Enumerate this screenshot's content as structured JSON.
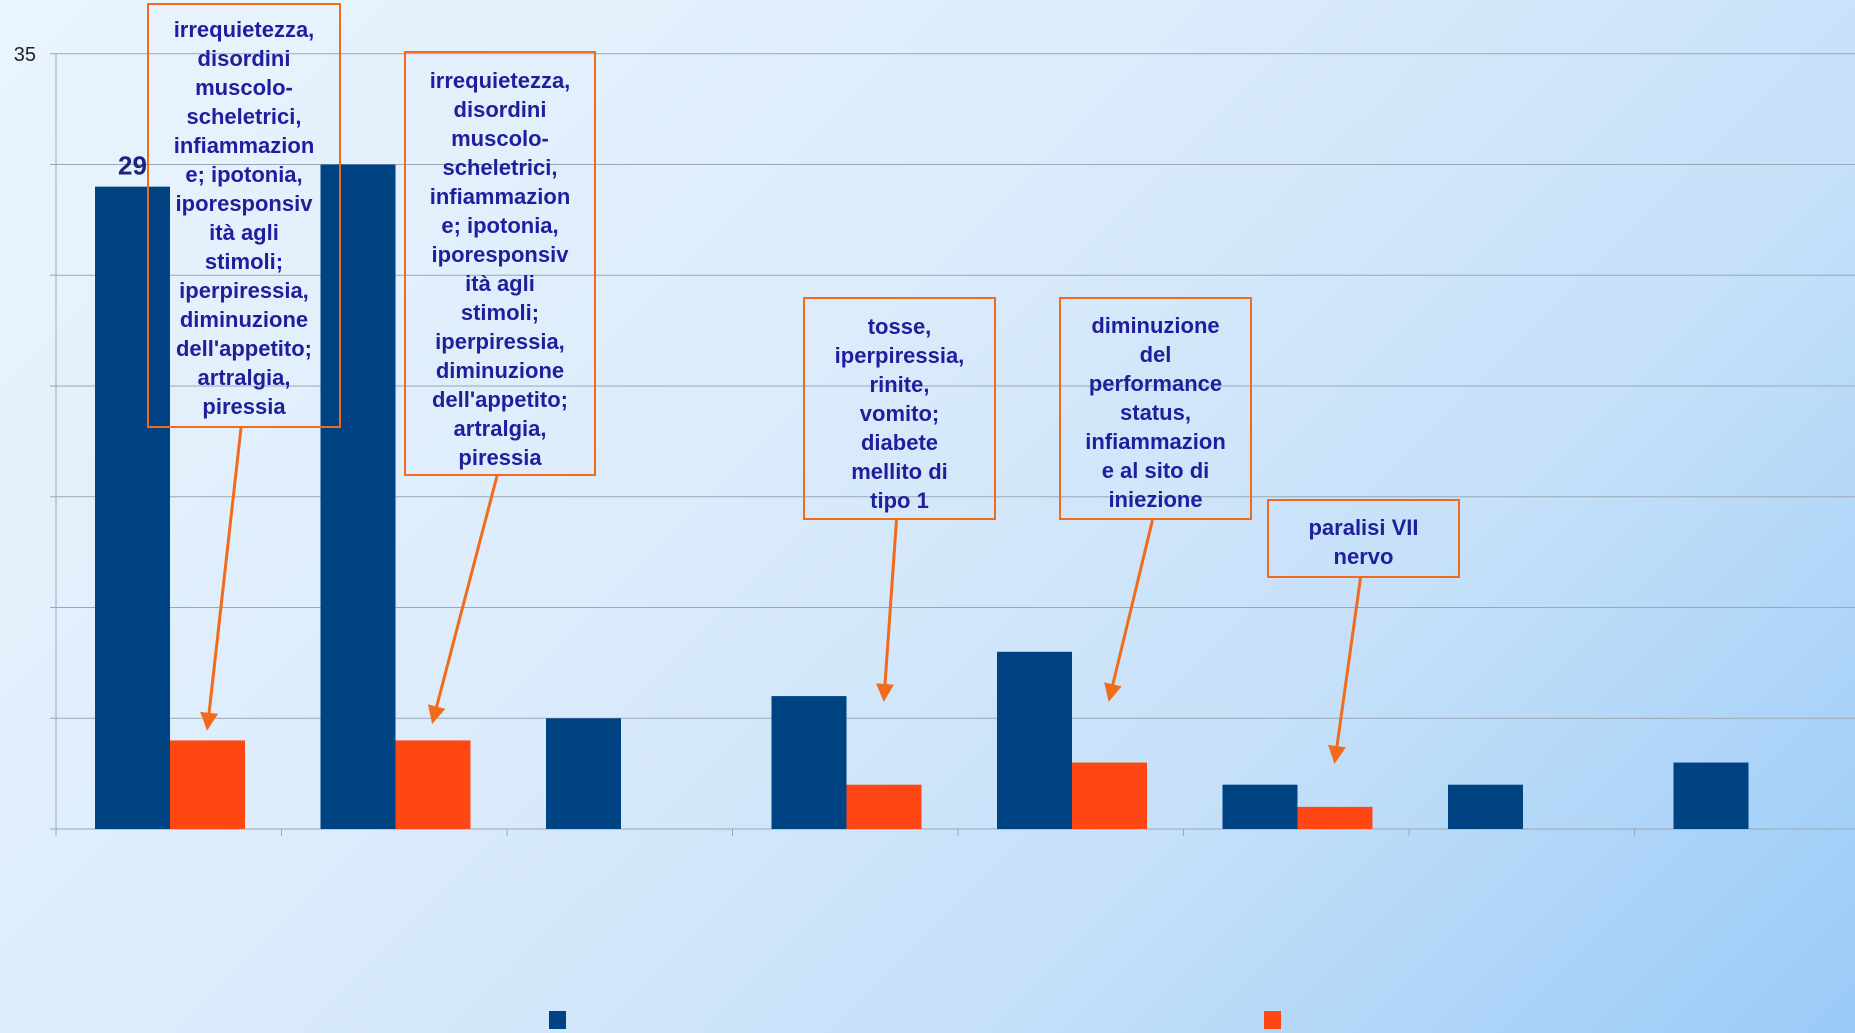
{
  "chart_data": {
    "type": "bar",
    "categories": [
      "",
      "",
      "",
      "",
      "",
      "",
      "",
      ""
    ],
    "series": [
      {
        "values": [
          29,
          30,
          5,
          6,
          8,
          2,
          2,
          3
        ]
      },
      {
        "values": [
          4,
          4,
          0,
          2,
          3,
          1,
          0,
          0
        ]
      }
    ],
    "colors": [
      "#004382",
      "#ff4713"
    ],
    "ylim": [
      0,
      35
    ],
    "ytick_labels_visible": [
      "35"
    ],
    "data_labels_visible": [
      {
        "series": 0,
        "category": 0,
        "text": "29"
      }
    ],
    "grid": true,
    "title": "",
    "xlabel": "",
    "ylabel": "",
    "legend": "bottom",
    "annotations": [
      {
        "id": "callout-1",
        "text": "irrequietezza, disordini muscolo-scheletrici, infiammazione; ipotonia, iporesponsività agli stimoli; iperpiressia, diminuzione dell'appetito; artralgia, piressia",
        "lines": [
          "irrequietezza,",
          "disordini",
          "muscolo-",
          "scheletrici,",
          "infiammazion",
          "e; ipotonia,",
          "iporesponsiv",
          "ità agli",
          "stimoli;",
          "iperpiressia,",
          "diminuzione",
          "dell'appetito;",
          "artralgia,",
          "piressia"
        ],
        "target_category": 0,
        "target_value": 4.6
      },
      {
        "id": "callout-2",
        "text": "irrequietezza, disordini muscolo-scheletrici, infiammazione; ipotonia, iporesponsività agli stimoli; iperpiressia, diminuzione dell'appetito; artralgia, piressia",
        "lines": [
          "irrequietezza,",
          "disordini",
          "muscolo-",
          "scheletrici,",
          "infiammazion",
          "e; ipotonia,",
          "iporesponsiv",
          "ità agli",
          "stimoli;",
          "iperpiressia,",
          "diminuzione",
          "dell'appetito;",
          "artralgia,",
          "piressia"
        ],
        "target_category": 1,
        "target_value": 4.9
      },
      {
        "id": "callout-3",
        "text": "tosse, iperpiressia, rinite, vomito; diabete mellito di tipo 1",
        "lines": [
          "tosse,",
          "iperpiressia,",
          "rinite,",
          "vomito;",
          "diabete",
          "mellito di",
          "tipo 1"
        ],
        "target_category": 3,
        "target_value": 5.9
      },
      {
        "id": "callout-4",
        "text": "diminuzione del performance status, infiammazione al sito di iniezione",
        "lines": [
          "diminuzione",
          "del",
          "performance",
          "status,",
          "infiammazion",
          "e al sito di",
          "iniezione"
        ],
        "target_category": 4,
        "target_value": 5.9
      },
      {
        "id": "callout-5",
        "text": "paralisi VII nervo",
        "lines": [
          "paralisi VII",
          "nervo"
        ],
        "target_category": 5,
        "target_value": 3.1
      }
    ]
  }
}
